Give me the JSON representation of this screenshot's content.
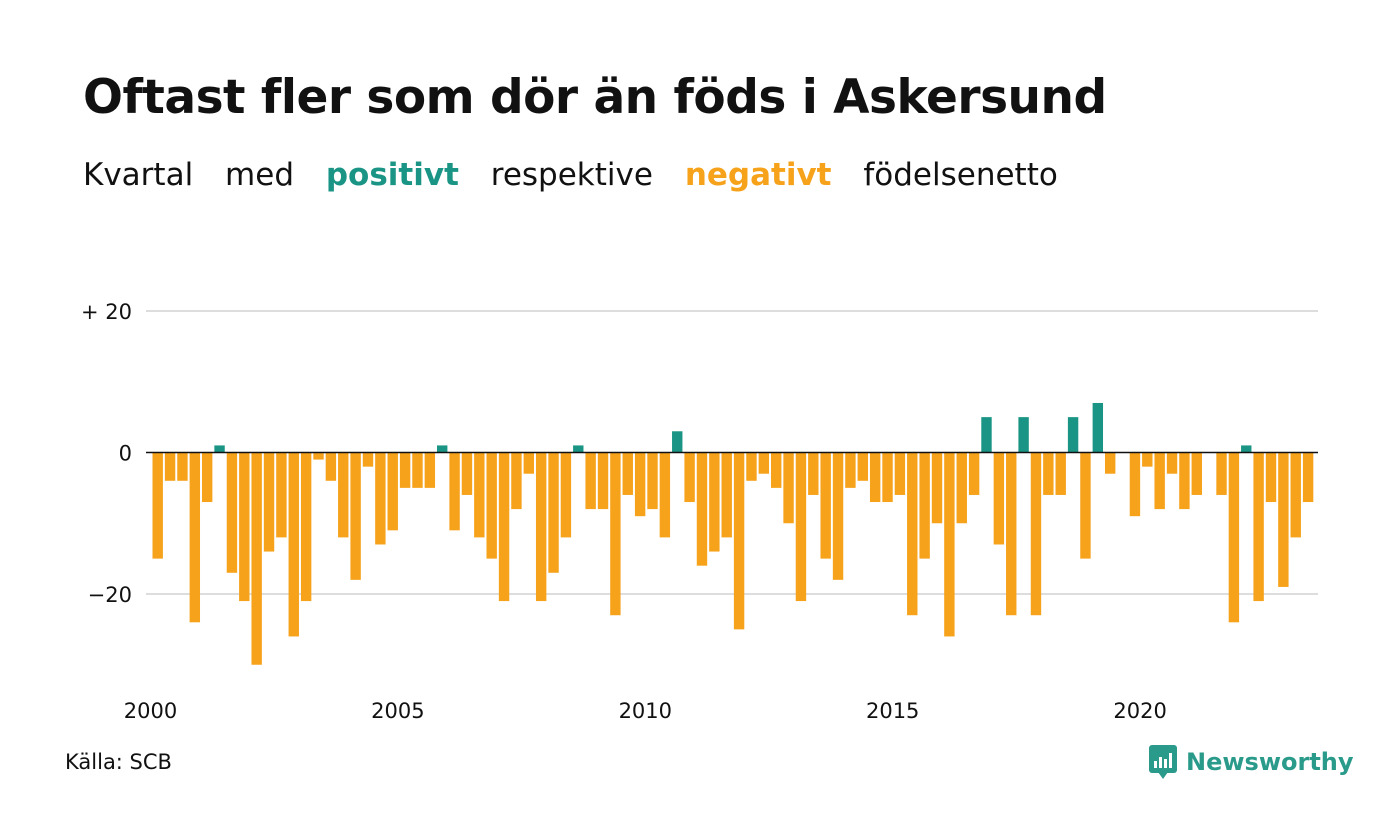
{
  "title": "Oftast fler som dör än föds i Askersund",
  "subtitle": {
    "w1": "Kvartal",
    "w2": "med",
    "positive": "positivt",
    "w3": "respektive",
    "negative": "negativt",
    "w4": "födelsenetto"
  },
  "colors": {
    "positive": "#1a9585",
    "negative": "#f6a21b",
    "grid": "#dddddd"
  },
  "source": "Källa: SCB",
  "brand": "Newsworthy",
  "chart_data": {
    "type": "bar",
    "title": "Oftast fler som dör än föds i Askersund",
    "x_start": 2000,
    "x_step": 0.25,
    "values": [
      -15,
      -4,
      -4,
      -24,
      -7,
      1,
      -17,
      -21,
      -30,
      -14,
      -12,
      -26,
      -21,
      -1,
      -4,
      -12,
      -18,
      -2,
      -13,
      -11,
      -5,
      -5,
      -5,
      1,
      -11,
      -6,
      -12,
      -15,
      -21,
      -8,
      -3,
      -21,
      -17,
      -12,
      1,
      -8,
      -8,
      -23,
      -6,
      -9,
      -8,
      -12,
      3,
      -7,
      -16,
      -14,
      -12,
      -25,
      -4,
      -3,
      -5,
      -10,
      -21,
      -6,
      -15,
      -18,
      -5,
      -4,
      -7,
      -7,
      -6,
      -23,
      -15,
      -10,
      -26,
      -10,
      -6,
      5,
      -13,
      -23,
      5,
      -23,
      -6,
      -6,
      5,
      -15,
      7,
      -3,
      0,
      -9,
      -2,
      -8,
      -3,
      -8,
      -6,
      0,
      -6,
      -24,
      1,
      -21,
      -7,
      -19,
      -12,
      -7
    ],
    "ylim": [
      -30,
      20
    ],
    "y_ticks": [
      {
        "value": 20,
        "label": "+ 20"
      },
      {
        "value": 0,
        "label": "0"
      },
      {
        "value": -20,
        "label": "−20"
      }
    ],
    "x_ticks": [
      "2000",
      "2005",
      "2010",
      "2015",
      "2020"
    ],
    "grid": true
  }
}
